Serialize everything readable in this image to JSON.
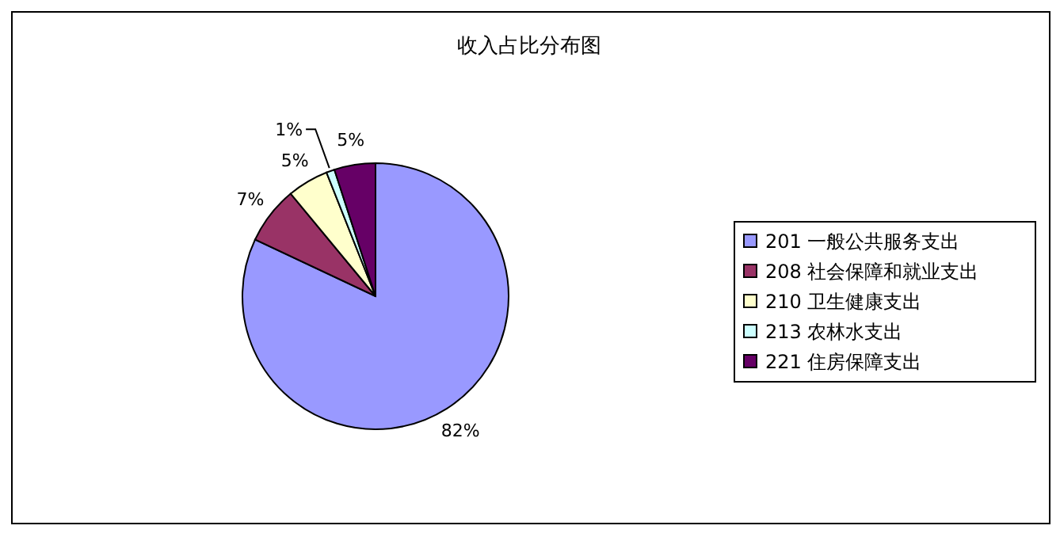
{
  "chart_data": {
    "type": "pie",
    "title": "收入占比分布图",
    "categories": [
      "201  一般公共服务支出",
      "208  社会保障和就业支出",
      "210  卫生健康支出",
      "213  农林水支出",
      "221  住房保障支出"
    ],
    "values": [
      82,
      7,
      5,
      1,
      5
    ],
    "colors": [
      "#9999ff",
      "#993366",
      "#ffffcc",
      "#ccffff",
      "#660066"
    ],
    "value_labels": [
      "82%",
      "7%",
      "5%",
      "1%",
      "5%"
    ],
    "legend": "right"
  }
}
